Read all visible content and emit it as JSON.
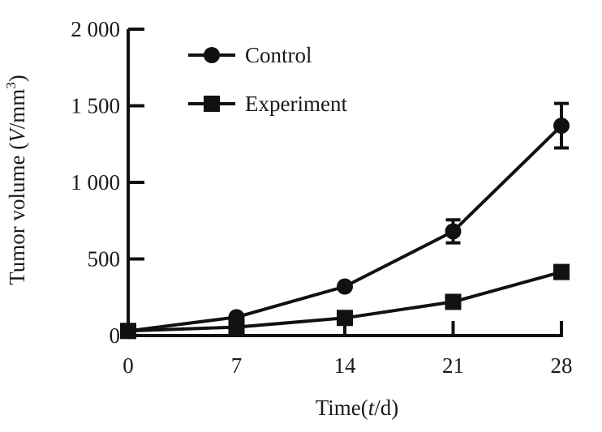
{
  "chart_data": {
    "type": "line",
    "x": [
      0,
      7,
      14,
      21,
      28
    ],
    "xlim": [
      0,
      28
    ],
    "ylim": [
      0,
      2000
    ],
    "x_ticks": [
      {
        "value": 0,
        "label": "0"
      },
      {
        "value": 7,
        "label": "7"
      },
      {
        "value": 14,
        "label": "14"
      },
      {
        "value": 21,
        "label": "21"
      },
      {
        "value": 28,
        "label": "28"
      }
    ],
    "y_ticks": [
      {
        "value": 0,
        "label": "0"
      },
      {
        "value": 500,
        "label": "500"
      },
      {
        "value": 1000,
        "label": "1 000"
      },
      {
        "value": 1500,
        "label": "1 500"
      },
      {
        "value": 2000,
        "label": "2 000"
      }
    ],
    "xlabel": {
      "prefix": "Time(",
      "var": "t",
      "suffix": "/d)"
    },
    "ylabel": {
      "prefix": "Tumor volume (",
      "var": "V",
      "unit": "/mm",
      "sup": "3",
      "suffix": ")"
    },
    "grid": false,
    "legend_position": "top-left",
    "series": [
      {
        "name": "Control",
        "marker": "circle",
        "color": "#111111",
        "values": [
          30,
          120,
          320,
          680,
          1370
        ],
        "errors": [
          0,
          0,
          0,
          75,
          145
        ]
      },
      {
        "name": "Experiment",
        "marker": "square",
        "color": "#111111",
        "values": [
          30,
          55,
          115,
          220,
          415
        ],
        "errors": [
          0,
          0,
          0,
          0,
          0
        ]
      }
    ]
  }
}
